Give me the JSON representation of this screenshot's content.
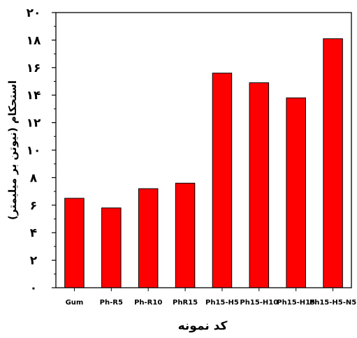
{
  "chart_data": {
    "type": "bar",
    "title": "",
    "xlabel": "کد نمونه",
    "ylabel": "استحکام (نیوتن بر میلیمتر)",
    "categories": [
      "Gum",
      "Ph-R5",
      "Ph-R10",
      "PhR15",
      "Ph15-H5",
      "Ph15-H10",
      "Ph15-H15",
      "Ph15-H5-N5"
    ],
    "values": [
      6.5,
      5.8,
      7.2,
      7.6,
      15.6,
      14.9,
      13.8,
      18.1
    ],
    "ylim": [
      0,
      20
    ],
    "yticks": [
      0,
      2,
      4,
      6,
      8,
      10,
      12,
      14,
      16,
      18,
      20
    ],
    "ytick_labels": [
      "٠",
      "٢",
      "۴",
      "۶",
      "٨",
      "١٠",
      "١٢",
      "١۴",
      "١۶",
      "١٨",
      "٢٠"
    ],
    "bar_color": "#ff0000",
    "grid": false,
    "legend": "none"
  }
}
